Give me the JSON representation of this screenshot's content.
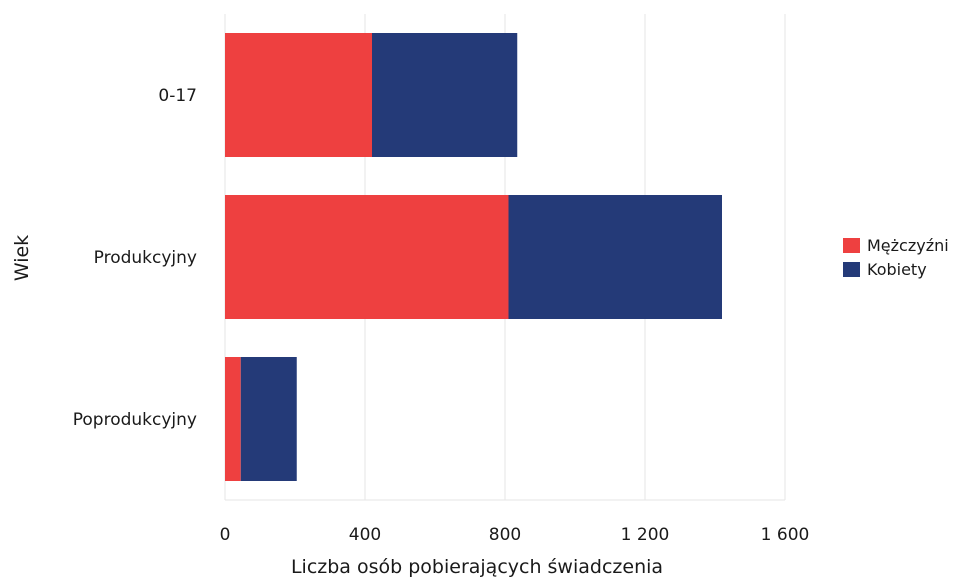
{
  "chart_data": {
    "type": "bar",
    "orientation": "horizontal",
    "stacked": true,
    "categories": [
      "0-17",
      "Produkcyjny",
      "Poprodukcyjny"
    ],
    "series": [
      {
        "name": "Mężczyźni",
        "color": "#ee4040",
        "values": [
          420,
          810,
          45
        ]
      },
      {
        "name": "Kobiety",
        "color": "#243a78",
        "values": [
          415,
          610,
          160
        ]
      }
    ],
    "xlabel": "Liczba osób pobierających świadczenia",
    "ylabel": "Wiek",
    "xlim": [
      0,
      1600
    ],
    "xticks": [
      0,
      400,
      800,
      1200,
      1600
    ],
    "xtick_labels": [
      "0",
      "400",
      "800",
      "1 200",
      "1 600"
    ],
    "grid": false,
    "legend_position": "right"
  }
}
